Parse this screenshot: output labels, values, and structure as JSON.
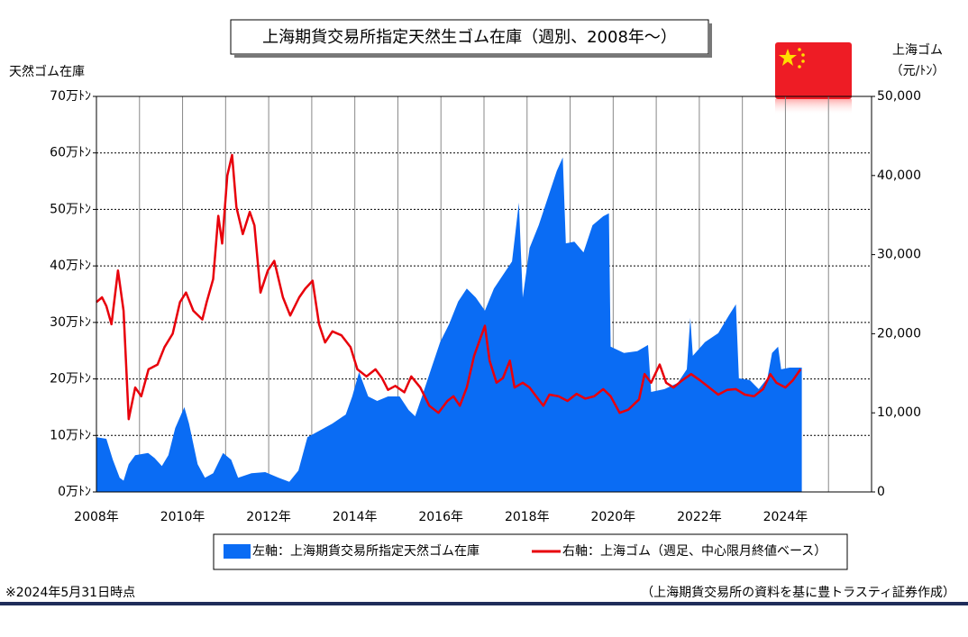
{
  "chart_data": {
    "type": "area-line",
    "title": "上海期貨交易所指定天然生ゴム在庫（週別、2008年～）",
    "y_axis_title": "天然ゴム在庫",
    "y2_axis_title": "上海ゴム",
    "y2_axis_unit": "（元/ﾄﾝ）",
    "note": "※2024年5月31日時点",
    "source": "（上海期貨交易所の資料を基に豊トラスティ証券作成）",
    "xlim": [
      2008,
      2026
    ],
    "xticks": [
      {
        "value": 2008,
        "label": "2008年"
      },
      {
        "value": 2009,
        "label": null
      },
      {
        "value": 2010,
        "label": "2010年"
      },
      {
        "value": 2011,
        "label": null
      },
      {
        "value": 2012,
        "label": "2012年"
      },
      {
        "value": 2013,
        "label": null
      },
      {
        "value": 2014,
        "label": "2014年"
      },
      {
        "value": 2015,
        "label": null
      },
      {
        "value": 2016,
        "label": "2016年"
      },
      {
        "value": 2017,
        "label": null
      },
      {
        "value": 2018,
        "label": "2018年"
      },
      {
        "value": 2019,
        "label": null
      },
      {
        "value": 2020,
        "label": "2020年"
      },
      {
        "value": 2021,
        "label": null
      },
      {
        "value": 2022,
        "label": "2022年"
      },
      {
        "value": 2023,
        "label": null
      },
      {
        "value": 2024,
        "label": "2024年"
      },
      {
        "value": 2025,
        "label": null
      },
      {
        "value": 2026,
        "label": null
      }
    ],
    "ylim": [
      0,
      70
    ],
    "yticks": [
      {
        "value": 0,
        "label": "0万ﾄﾝ"
      },
      {
        "value": 10,
        "label": "10万ﾄﾝ"
      },
      {
        "value": 20,
        "label": "20万ﾄﾝ"
      },
      {
        "value": 30,
        "label": "30万ﾄﾝ"
      },
      {
        "value": 40,
        "label": "40万ﾄﾝ"
      },
      {
        "value": 50,
        "label": "50万ﾄﾝ"
      },
      {
        "value": 60,
        "label": "60万ﾄﾝ"
      },
      {
        "value": 70,
        "label": "70万ﾄﾝ"
      }
    ],
    "y2lim": [
      0,
      50000
    ],
    "y2ticks": [
      0,
      {
        "value": 10000,
        "label": "10,000"
      },
      {
        "value": 20000,
        "label": "20,000"
      },
      {
        "value": 30000,
        "label": "30,000"
      },
      {
        "value": 40000,
        "label": "40,000"
      },
      {
        "value": 50000,
        "label": "50,000"
      }
    ],
    "grid": true,
    "series": [
      {
        "name": "左軸：上海期貨交易所指定天然ゴム在庫",
        "color": "#0a6cf4",
        "kind": "area",
        "axis": "y",
        "x": [
          2008.0,
          2008.23,
          2008.38,
          2008.54,
          2008.63,
          2008.75,
          2008.9,
          2009.2,
          2009.35,
          2009.52,
          2009.67,
          2009.83,
          2010.04,
          2010.15,
          2010.35,
          2010.52,
          2010.71,
          2010.94,
          2011.13,
          2011.29,
          2011.6,
          2011.92,
          2012.23,
          2012.48,
          2012.69,
          2012.9,
          2013.17,
          2013.48,
          2013.79,
          2013.94,
          2014.1,
          2014.31,
          2014.52,
          2014.77,
          2015.04,
          2015.25,
          2015.4,
          2015.56,
          2015.77,
          2015.98,
          2016.19,
          2016.4,
          2016.6,
          2016.81,
          2017.02,
          2017.23,
          2017.44,
          2017.65,
          2017.81,
          2017.9,
          2018.06,
          2018.27,
          2018.48,
          2018.69,
          2018.83,
          2018.9,
          2019.1,
          2019.31,
          2019.52,
          2019.77,
          2019.9,
          2019.94,
          2020.25,
          2020.56,
          2020.81,
          2020.88,
          2021.19,
          2021.5,
          2021.71,
          2021.79,
          2021.85,
          2022.13,
          2022.44,
          2022.69,
          2022.85,
          2022.92,
          2023.17,
          2023.38,
          2023.58,
          2023.69,
          2023.83,
          2023.9,
          2024.1,
          2024.38
        ],
        "values": [
          9.7,
          9.4,
          5.7,
          2.5,
          2,
          4.9,
          6.5,
          6.9,
          6,
          4.6,
          6.5,
          11.3,
          15,
          12.1,
          4.9,
          2.5,
          3.3,
          6.9,
          5.7,
          2.5,
          3.3,
          3.5,
          2.5,
          1.8,
          3.8,
          9.7,
          10.8,
          12.1,
          13.7,
          16.9,
          21.2,
          16.9,
          16.1,
          16.9,
          16.9,
          14.5,
          13.4,
          16.9,
          21.7,
          26.5,
          29.7,
          33.7,
          36,
          34.4,
          32.1,
          36,
          38.4,
          40.8,
          51.2,
          34.4,
          43.2,
          47.2,
          52,
          56.8,
          59.2,
          44,
          44.3,
          42.4,
          47.2,
          48.8,
          49.3,
          25.7,
          24.6,
          24.9,
          26,
          17.7,
          18.2,
          19.3,
          21.7,
          30.8,
          24.1,
          26.5,
          28.1,
          31.3,
          33.2,
          20.1,
          19.8,
          18.2,
          20.1,
          24.6,
          25.7,
          21.7,
          22,
          22
        ]
      },
      {
        "name": "右軸：上海ゴム（週足、中心限月終値ベース）",
        "color": "#e8000b",
        "kind": "line",
        "axis": "y2",
        "x": [
          2008.0,
          2008.13,
          2008.23,
          2008.35,
          2008.5,
          2008.63,
          2008.75,
          2008.9,
          2009.04,
          2009.21,
          2009.42,
          2009.58,
          2009.77,
          2009.94,
          2010.08,
          2010.25,
          2010.46,
          2010.56,
          2010.71,
          2010.83,
          2010.92,
          2011.04,
          2011.15,
          2011.25,
          2011.4,
          2011.56,
          2011.67,
          2011.81,
          2011.98,
          2012.13,
          2012.33,
          2012.5,
          2012.71,
          2012.85,
          2013.02,
          2013.17,
          2013.31,
          2013.48,
          2013.69,
          2013.9,
          2014.06,
          2014.27,
          2014.48,
          2014.63,
          2014.77,
          2014.94,
          2015.15,
          2015.31,
          2015.52,
          2015.73,
          2015.94,
          2016.15,
          2016.29,
          2016.44,
          2016.6,
          2016.77,
          2016.92,
          2017.02,
          2017.13,
          2017.29,
          2017.44,
          2017.6,
          2017.71,
          2017.9,
          2018.06,
          2018.21,
          2018.38,
          2018.52,
          2018.73,
          2018.94,
          2019.15,
          2019.35,
          2019.56,
          2019.77,
          2019.94,
          2020.15,
          2020.35,
          2020.6,
          2020.73,
          2020.88,
          2021.08,
          2021.23,
          2021.4,
          2021.6,
          2021.81,
          2022.02,
          2022.23,
          2022.44,
          2022.65,
          2022.85,
          2023.06,
          2023.27,
          2023.48,
          2023.65,
          2023.79,
          2024.0,
          2024.17,
          2024.35
        ],
        "values": [
          24000,
          24600,
          23500,
          21200,
          28000,
          22900,
          9200,
          13200,
          12100,
          15500,
          16100,
          18300,
          20000,
          24000,
          25200,
          22900,
          21800,
          24000,
          26900,
          34900,
          31400,
          40000,
          42600,
          36000,
          32600,
          35400,
          33700,
          25200,
          28000,
          29200,
          24600,
          22300,
          24600,
          25700,
          26700,
          21200,
          18900,
          20300,
          19800,
          18300,
          15500,
          14600,
          15500,
          14400,
          12900,
          13400,
          12600,
          14600,
          13200,
          10900,
          10000,
          11500,
          12100,
          10900,
          13200,
          17200,
          19500,
          21000,
          16600,
          13800,
          14400,
          16600,
          13200,
          13800,
          13200,
          12100,
          10900,
          12300,
          12100,
          11500,
          12400,
          11800,
          12100,
          13000,
          12100,
          10000,
          10400,
          11700,
          14900,
          13800,
          16100,
          13800,
          13200,
          14100,
          14900,
          14100,
          13200,
          12300,
          12900,
          13000,
          12300,
          12100,
          13000,
          14900,
          13800,
          13200,
          14100,
          15500
        ]
      }
    ]
  }
}
